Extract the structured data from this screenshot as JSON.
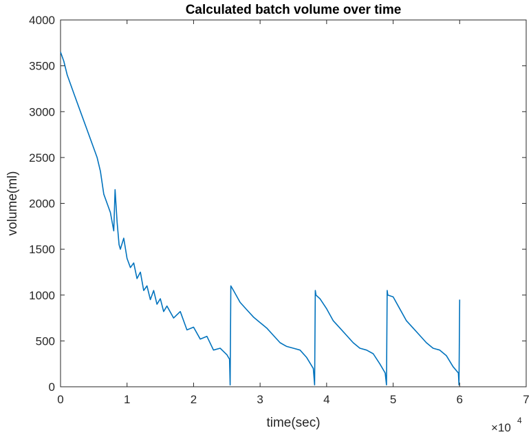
{
  "chart_data": {
    "type": "line",
    "title": "Calculated batch volume over time",
    "xlabel": "time(sec)",
    "ylabel": "volume(ml)",
    "x_exponent_base": "×10",
    "x_exponent_power": "4",
    "xlim": [
      0,
      7
    ],
    "ylim": [
      0,
      4000
    ],
    "x_ticks": [
      0,
      1,
      2,
      3,
      4,
      5,
      6,
      7
    ],
    "y_ticks": [
      0,
      500,
      1000,
      1500,
      2000,
      2500,
      3000,
      3500,
      4000
    ],
    "grid": false,
    "series": [
      {
        "color": "#0072BD",
        "x": [
          0.0,
          0.05,
          0.1,
          0.2,
          0.3,
          0.4,
          0.5,
          0.55,
          0.6,
          0.65,
          0.7,
          0.75,
          0.8,
          0.82,
          0.85,
          0.88,
          0.9,
          0.95,
          1.0,
          1.05,
          1.1,
          1.15,
          1.2,
          1.25,
          1.3,
          1.35,
          1.4,
          1.45,
          1.5,
          1.55,
          1.6,
          1.7,
          1.8,
          1.9,
          2.0,
          2.1,
          2.2,
          2.3,
          2.4,
          2.5,
          2.54,
          2.55,
          2.56,
          2.6,
          2.7,
          2.8,
          2.9,
          3.0,
          3.1,
          3.2,
          3.3,
          3.4,
          3.5,
          3.6,
          3.7,
          3.8,
          3.82,
          3.83,
          3.84,
          3.9,
          4.0,
          4.1,
          4.2,
          4.3,
          4.4,
          4.5,
          4.6,
          4.7,
          4.8,
          4.88,
          4.9,
          4.91,
          4.92,
          5.0,
          5.1,
          5.2,
          5.3,
          5.4,
          5.5,
          5.6,
          5.7,
          5.8,
          5.9,
          5.98,
          5.99,
          6.0
        ],
        "y": [
          3650,
          3550,
          3400,
          3200,
          3000,
          2800,
          2600,
          2500,
          2350,
          2100,
          2000,
          1900,
          1700,
          2150,
          1800,
          1550,
          1500,
          1620,
          1400,
          1300,
          1350,
          1180,
          1250,
          1050,
          1100,
          950,
          1050,
          900,
          960,
          820,
          880,
          750,
          820,
          620,
          650,
          520,
          550,
          400,
          420,
          350,
          300,
          20,
          1100,
          1050,
          920,
          840,
          760,
          700,
          640,
          560,
          480,
          440,
          420,
          400,
          320,
          200,
          20,
          1050,
          1000,
          960,
          850,
          720,
          640,
          560,
          480,
          420,
          400,
          360,
          250,
          150,
          20,
          1050,
          1000,
          980,
          850,
          720,
          640,
          560,
          480,
          420,
          400,
          340,
          220,
          150,
          20,
          950
        ]
      }
    ]
  }
}
